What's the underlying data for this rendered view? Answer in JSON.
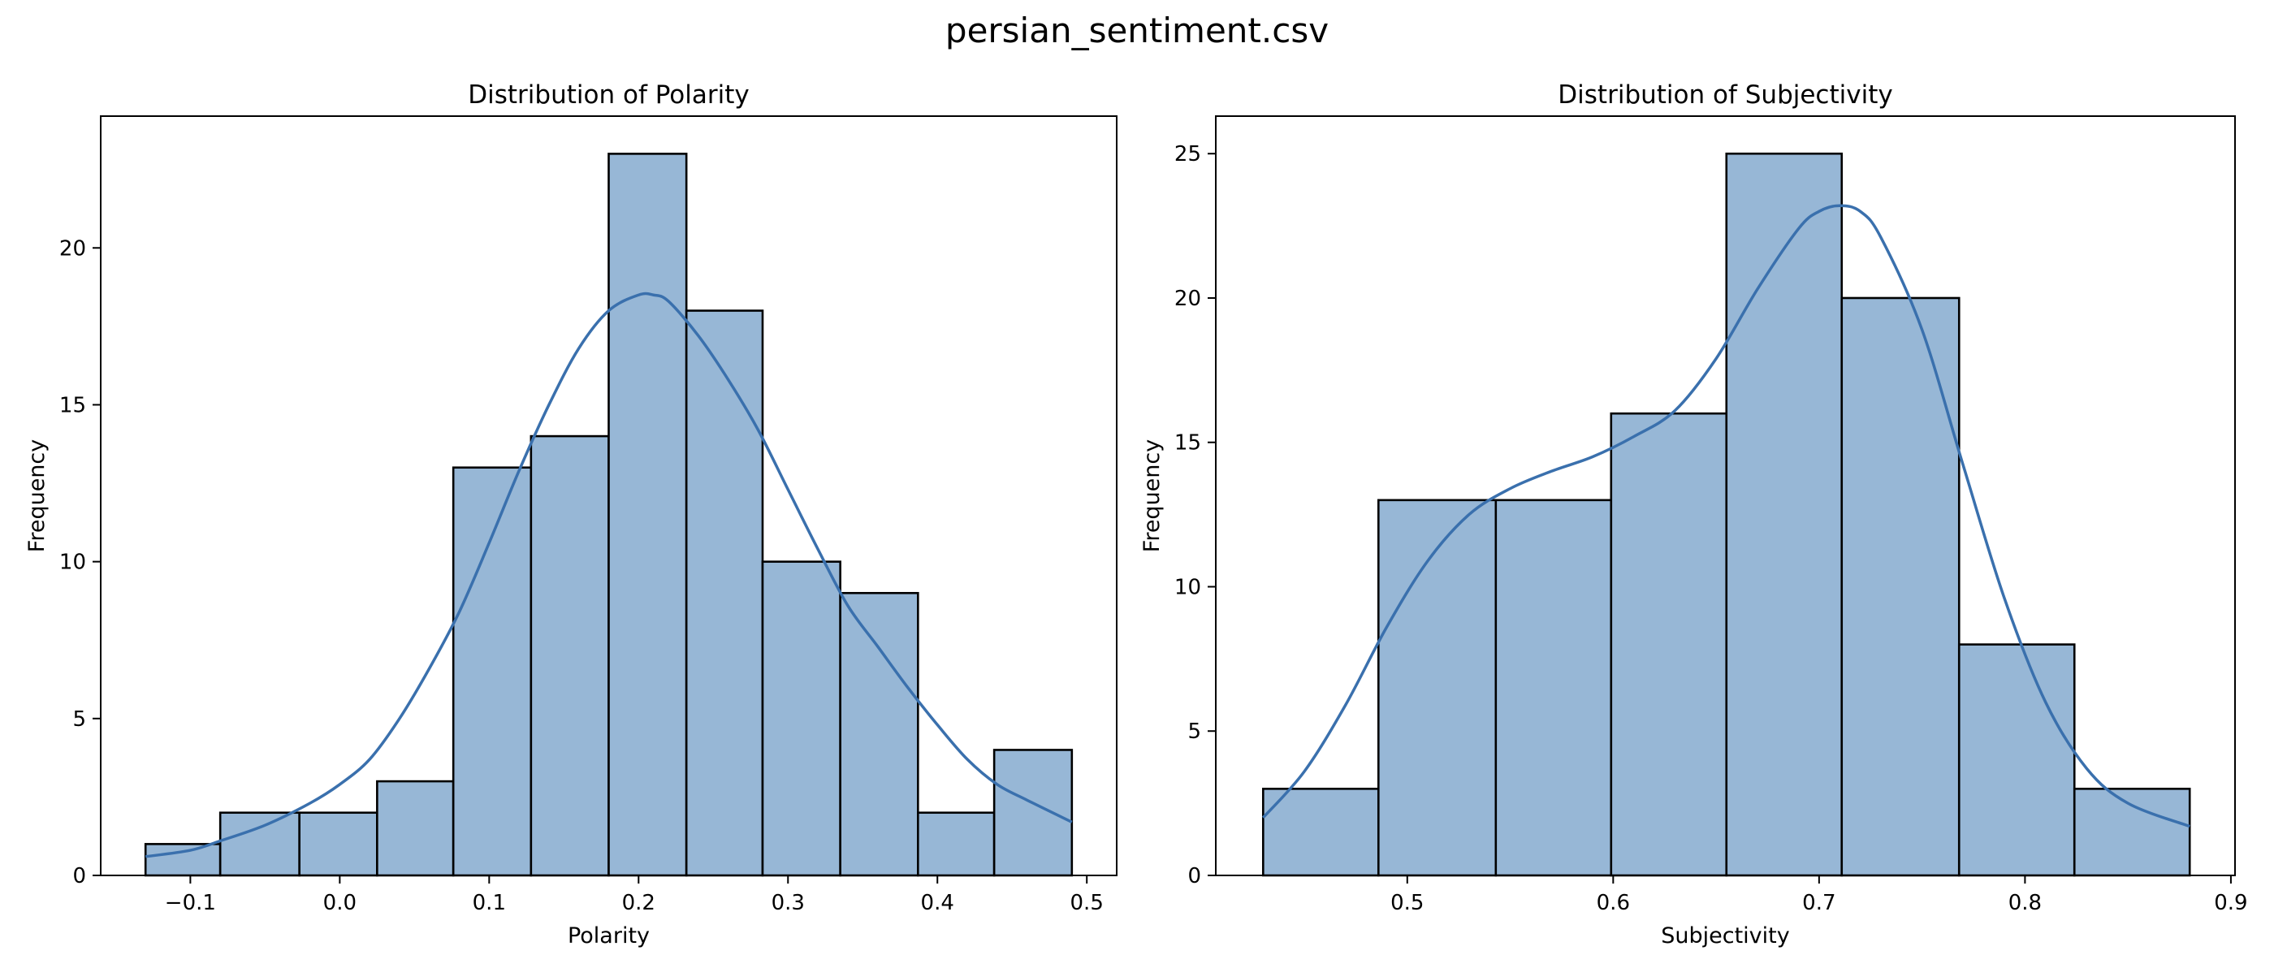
{
  "figure_title": "persian_sentiment.csv",
  "colors": {
    "bar_fill": "#97b7d6",
    "bar_edge": "#000000",
    "kde_line": "#3a70ad"
  },
  "chart_data": [
    {
      "type": "histogram",
      "title": "Distribution of Polarity",
      "xlabel": "Polarity",
      "ylabel": "Frequency",
      "xlim": [
        -0.16,
        0.52
      ],
      "ylim": [
        0,
        24.2
      ],
      "xticks": [
        -0.1,
        0.0,
        0.1,
        0.2,
        0.3,
        0.4,
        0.5
      ],
      "xtick_labels": [
        "−0.1",
        "0.0",
        "0.1",
        "0.2",
        "0.3",
        "0.4",
        "0.5"
      ],
      "yticks": [
        0,
        5,
        10,
        15,
        20
      ],
      "ytick_labels": [
        "0",
        "5",
        "10",
        "15",
        "20"
      ],
      "bins": [
        {
          "x0": -0.13,
          "x1": -0.08,
          "count": 1
        },
        {
          "x0": -0.08,
          "x1": -0.027,
          "count": 2
        },
        {
          "x0": -0.027,
          "x1": 0.025,
          "count": 2
        },
        {
          "x0": 0.025,
          "x1": 0.076,
          "count": 3
        },
        {
          "x0": 0.076,
          "x1": 0.128,
          "count": 13
        },
        {
          "x0": 0.128,
          "x1": 0.18,
          "count": 14
        },
        {
          "x0": 0.18,
          "x1": 0.232,
          "count": 23
        },
        {
          "x0": 0.232,
          "x1": 0.283,
          "count": 18
        },
        {
          "x0": 0.283,
          "x1": 0.335,
          "count": 10
        },
        {
          "x0": 0.335,
          "x1": 0.387,
          "count": 9
        },
        {
          "x0": 0.387,
          "x1": 0.438,
          "count": 2
        },
        {
          "x0": 0.438,
          "x1": 0.49,
          "count": 4
        }
      ],
      "kde": {
        "x": [
          -0.13,
          -0.1,
          -0.08,
          -0.05,
          -0.02,
          0.0,
          0.02,
          0.04,
          0.06,
          0.08,
          0.1,
          0.12,
          0.14,
          0.16,
          0.18,
          0.2,
          0.21,
          0.22,
          0.24,
          0.26,
          0.28,
          0.3,
          0.32,
          0.34,
          0.36,
          0.38,
          0.4,
          0.42,
          0.44,
          0.46,
          0.49
        ],
        "y": [
          0.6,
          0.8,
          1.1,
          1.6,
          2.3,
          2.9,
          3.7,
          5.0,
          6.6,
          8.4,
          10.6,
          12.9,
          15.0,
          16.8,
          18.0,
          18.5,
          18.5,
          18.3,
          17.2,
          15.8,
          14.2,
          12.3,
          10.4,
          8.6,
          7.3,
          6.0,
          4.8,
          3.7,
          2.9,
          2.4,
          1.7
        ]
      }
    },
    {
      "type": "histogram",
      "title": "Distribution of Subjectivity",
      "xlabel": "Subjectivity",
      "ylabel": "Frequency",
      "xlim": [
        0.407,
        0.902
      ],
      "ylim": [
        0,
        26.3
      ],
      "xticks": [
        0.5,
        0.6,
        0.7,
        0.8,
        0.9
      ],
      "xtick_labels": [
        "0.5",
        "0.6",
        "0.7",
        "0.8",
        "0.9"
      ],
      "yticks": [
        0,
        5,
        10,
        15,
        20,
        25
      ],
      "ytick_labels": [
        "0",
        "5",
        "10",
        "15",
        "20",
        "25"
      ],
      "bins": [
        {
          "x0": 0.43,
          "x1": 0.486,
          "count": 3
        },
        {
          "x0": 0.486,
          "x1": 0.543,
          "count": 13
        },
        {
          "x0": 0.543,
          "x1": 0.599,
          "count": 13
        },
        {
          "x0": 0.599,
          "x1": 0.655,
          "count": 16
        },
        {
          "x0": 0.655,
          "x1": 0.711,
          "count": 25
        },
        {
          "x0": 0.711,
          "x1": 0.768,
          "count": 20
        },
        {
          "x0": 0.768,
          "x1": 0.824,
          "count": 8
        },
        {
          "x0": 0.824,
          "x1": 0.88,
          "count": 3
        }
      ],
      "kde": {
        "x": [
          0.43,
          0.45,
          0.47,
          0.49,
          0.51,
          0.53,
          0.55,
          0.57,
          0.59,
          0.61,
          0.63,
          0.65,
          0.67,
          0.69,
          0.7,
          0.71,
          0.72,
          0.73,
          0.75,
          0.77,
          0.79,
          0.81,
          0.83,
          0.85,
          0.88
        ],
        "y": [
          2.0,
          3.6,
          5.9,
          8.6,
          10.9,
          12.5,
          13.4,
          14.0,
          14.5,
          15.2,
          16.1,
          17.9,
          20.3,
          22.4,
          23.0,
          23.2,
          23.0,
          22.1,
          18.9,
          14.2,
          9.6,
          6.0,
          3.7,
          2.5,
          1.7
        ]
      }
    }
  ]
}
